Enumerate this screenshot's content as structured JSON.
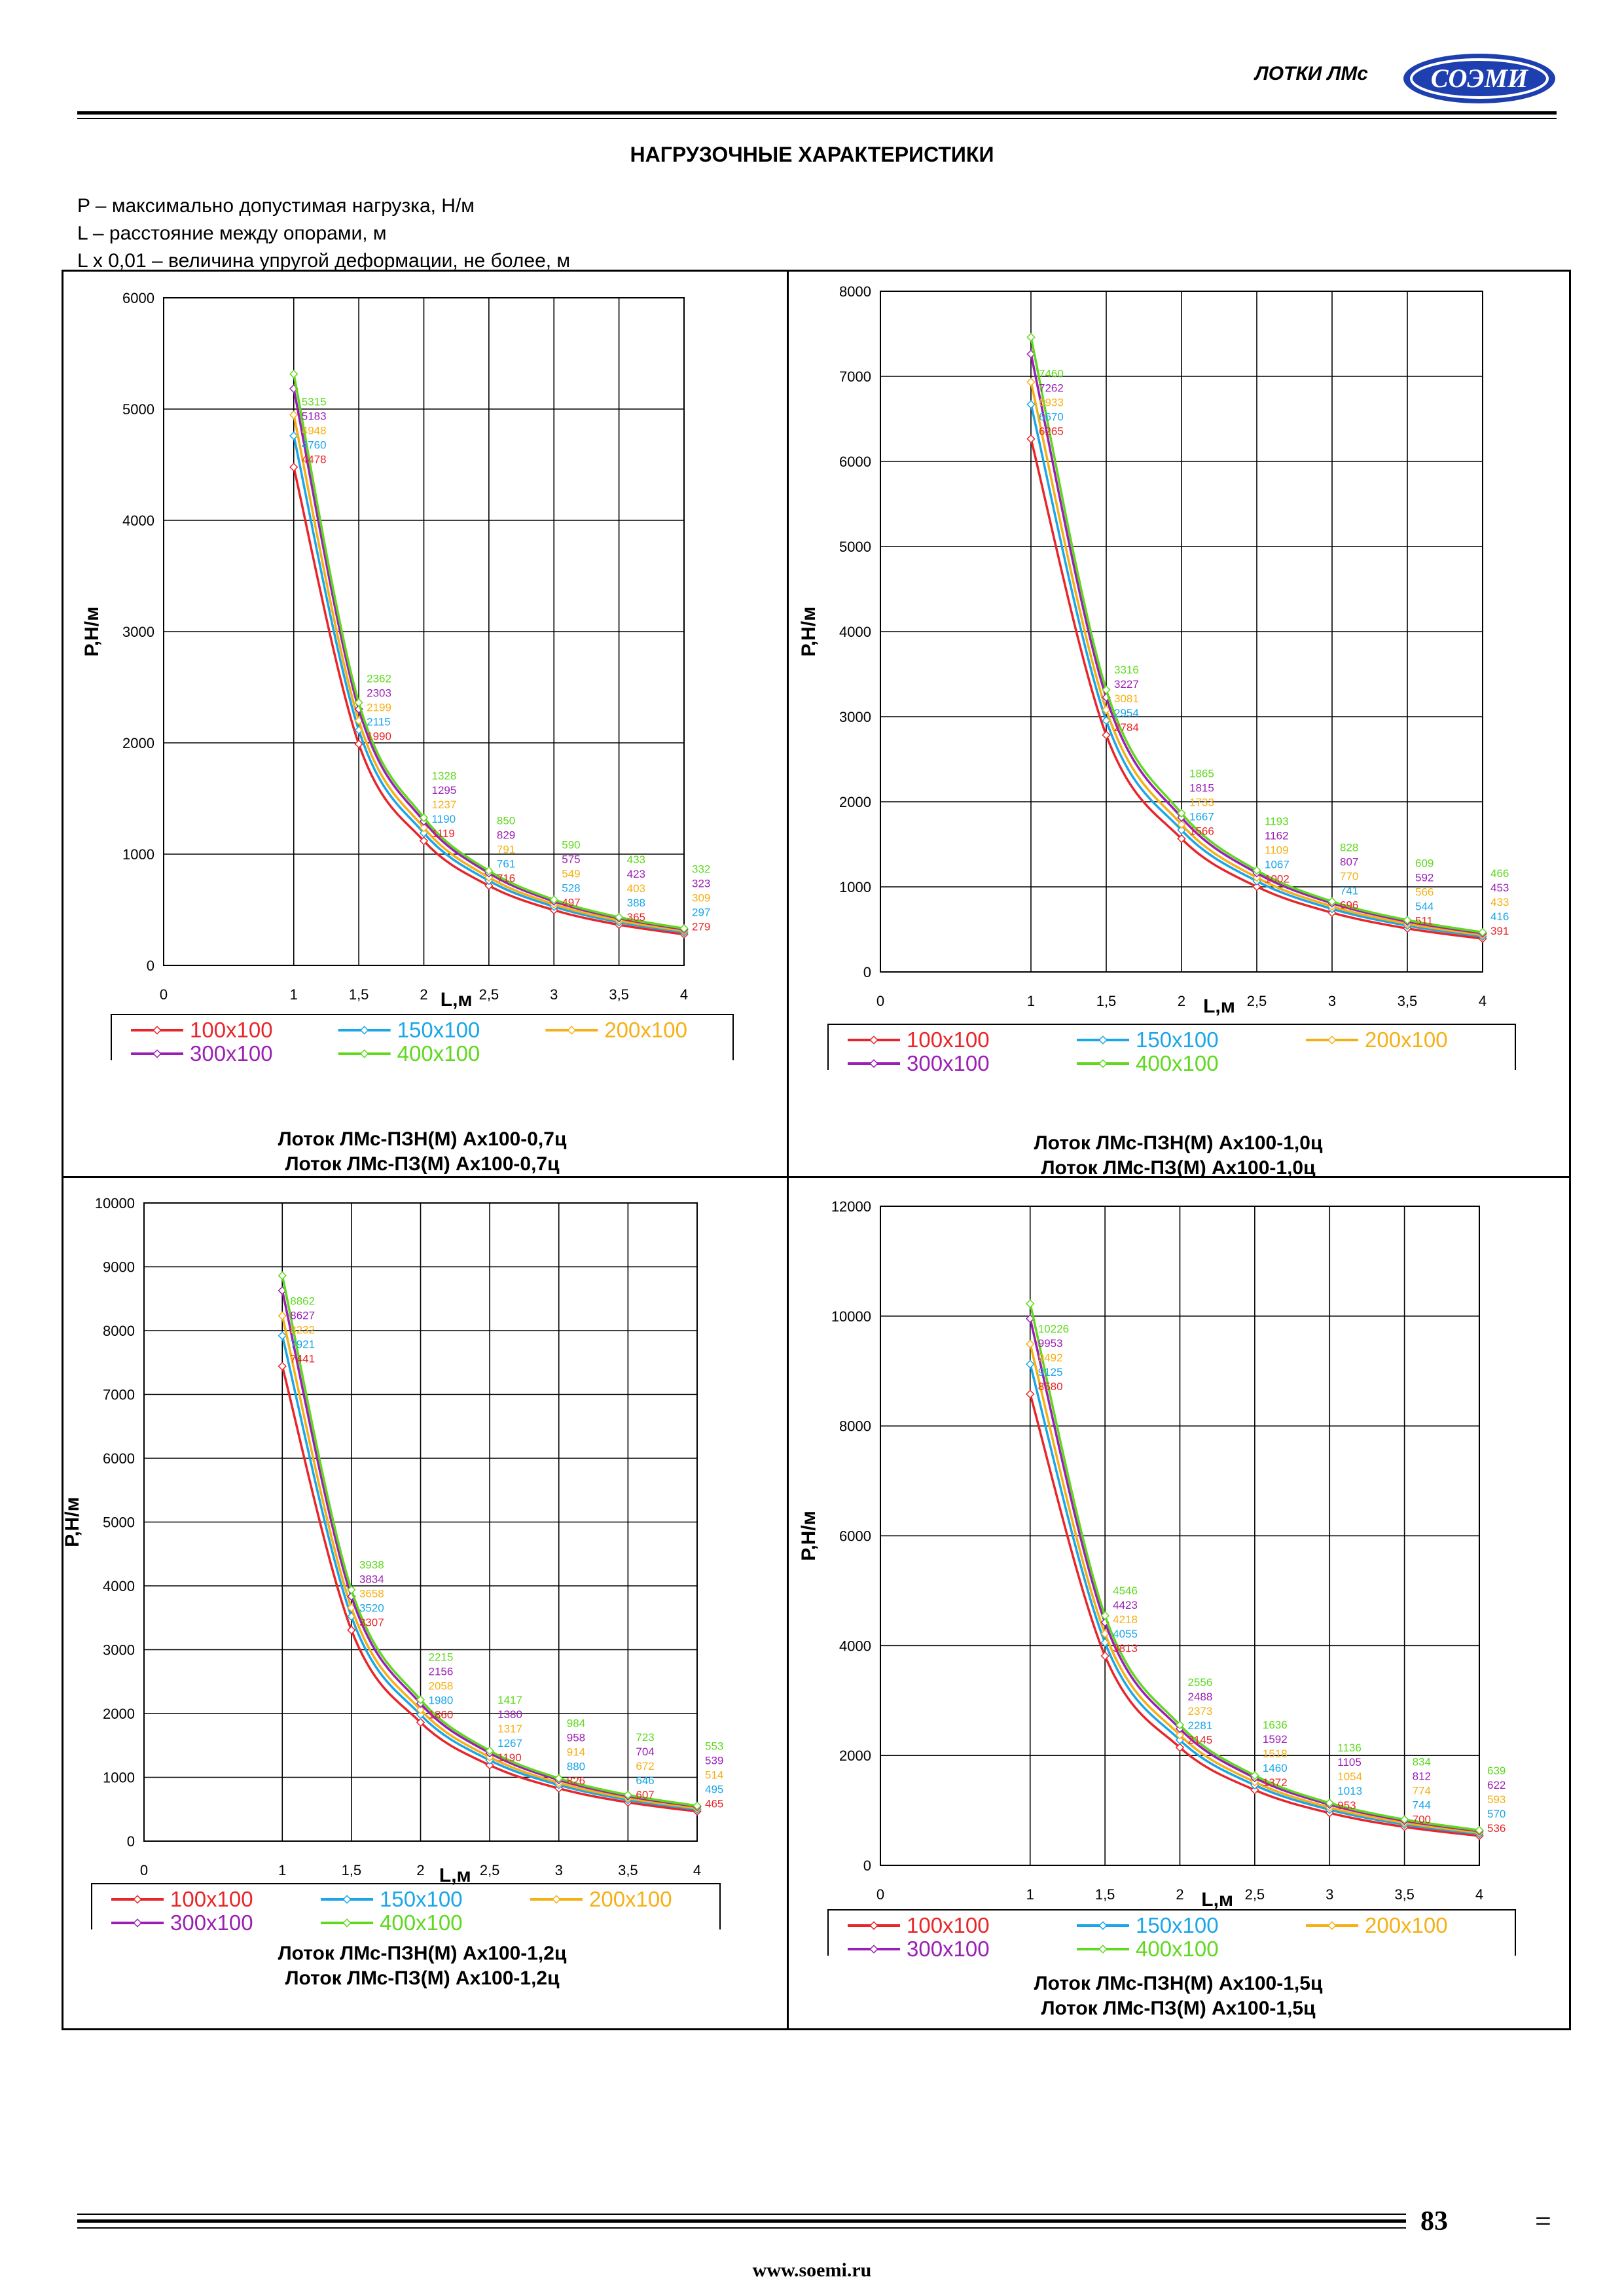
{
  "header": {
    "section": "ЛОТКИ ЛМс",
    "logo": "СОЭМИ"
  },
  "title": "НАГРУЗОЧНЫЕ ХАРАКТЕРИСТИКИ",
  "legend_lines": [
    "P – максимально допустимая нагрузка, Н/м",
    "L – расстояние между опорами, м",
    "L x 0,01 – величина упругой деформации, не более, м"
  ],
  "series_colors": {
    "100x100": "#e8262a",
    "150x100": "#1aa6e8",
    "200x100": "#f5b015",
    "300x100": "#9b1fb5",
    "400x100": "#5fd81e"
  },
  "chart_data": [
    {
      "type": "line",
      "xlabel": "L,м",
      "ylabel": "P,Н/м",
      "x": [
        1,
        1.5,
        2,
        2.5,
        3,
        3.5,
        4
      ],
      "xticks": [
        "0",
        "1",
        "1,5",
        "2",
        "2,5",
        "3",
        "3,5",
        "4"
      ],
      "xlim": [
        0,
        4
      ],
      "ylim": [
        0,
        6000
      ],
      "yticks": [
        "0",
        "1000",
        "2000",
        "3000",
        "4000",
        "5000",
        "6000"
      ],
      "series": [
        {
          "name": "100x100",
          "values": [
            4478,
            1990,
            1119,
            716,
            497,
            365,
            279
          ]
        },
        {
          "name": "150x100",
          "values": [
            4760,
            2115,
            1190,
            761,
            528,
            388,
            297
          ]
        },
        {
          "name": "200x100",
          "values": [
            4948,
            2199,
            1237,
            791,
            549,
            403,
            309
          ]
        },
        {
          "name": "300x100",
          "values": [
            5183,
            2303,
            1295,
            829,
            575,
            423,
            323
          ]
        },
        {
          "name": "400x100",
          "values": [
            5315,
            2362,
            1328,
            850,
            590,
            433,
            332
          ]
        }
      ],
      "caption": [
        "Лоток ЛМс-ПЗН(М) Ах100-0,7ц",
        "Лоток ЛМс-ПЗ(М) Ах100-0,7ц"
      ]
    },
    {
      "type": "line",
      "xlabel": "L,м",
      "ylabel": "P,Н/м",
      "x": [
        1,
        1.5,
        2,
        2.5,
        3,
        3.5,
        4
      ],
      "xticks": [
        "0",
        "1",
        "1,5",
        "2",
        "2,5",
        "3",
        "3,5",
        "4"
      ],
      "xlim": [
        0,
        4
      ],
      "ylim": [
        0,
        8000
      ],
      "yticks": [
        "0",
        "1000",
        "2000",
        "3000",
        "4000",
        "5000",
        "6000",
        "7000",
        "8000"
      ],
      "series": [
        {
          "name": "100x100",
          "values": [
            6265,
            2784,
            1566,
            1002,
            696,
            511,
            391
          ]
        },
        {
          "name": "150x100",
          "values": [
            6670,
            2954,
            1667,
            1067,
            741,
            544,
            416
          ]
        },
        {
          "name": "200x100",
          "values": [
            6933,
            3081,
            1733,
            1109,
            770,
            566,
            433
          ]
        },
        {
          "name": "300x100",
          "values": [
            7262,
            3227,
            1815,
            1162,
            807,
            592,
            453
          ]
        },
        {
          "name": "400x100",
          "values": [
            7460,
            3316,
            1865,
            1193,
            828,
            609,
            466
          ]
        }
      ],
      "caption": [
        "Лоток ЛМс-ПЗН(М) Ах100-1,0ц",
        "Лоток ЛМс-ПЗ(М) Ах100-1,0ц"
      ]
    },
    {
      "type": "line",
      "xlabel": "L,м",
      "ylabel": "P,Н/м",
      "x": [
        1,
        1.5,
        2,
        2.5,
        3,
        3.5,
        4
      ],
      "xticks": [
        "0",
        "1",
        "1,5",
        "2",
        "2,5",
        "3",
        "3,5",
        "4"
      ],
      "xlim": [
        0,
        4
      ],
      "ylim": [
        0,
        10000
      ],
      "yticks": [
        "0",
        "1000",
        "2000",
        "3000",
        "4000",
        "5000",
        "6000",
        "7000",
        "8000",
        "9000",
        "10000"
      ],
      "series": [
        {
          "name": "100x100",
          "values": [
            7441,
            3307,
            1860,
            1190,
            826,
            607,
            465
          ]
        },
        {
          "name": "150x100",
          "values": [
            7921,
            3520,
            1980,
            1267,
            880,
            646,
            495
          ]
        },
        {
          "name": "200x100",
          "values": [
            8232,
            3658,
            2058,
            1317,
            914,
            672,
            514
          ]
        },
        {
          "name": "300x100",
          "values": [
            8627,
            3834,
            2156,
            1380,
            958,
            704,
            539
          ]
        },
        {
          "name": "400x100",
          "values": [
            8862,
            3938,
            2215,
            1417,
            984,
            723,
            553
          ]
        }
      ],
      "caption": [
        "Лоток ЛМс-ПЗН(М) Ах100-1,2ц",
        "Лоток ЛМс-ПЗ(М) Ах100-1,2ц"
      ]
    },
    {
      "type": "line",
      "xlabel": "L,м",
      "ylabel": "P,Н/м",
      "x": [
        1,
        1.5,
        2,
        2.5,
        3,
        3.5,
        4
      ],
      "xticks": [
        "0",
        "1",
        "1,5",
        "2",
        "2,5",
        "3",
        "3,5",
        "4"
      ],
      "xlim": [
        0,
        4
      ],
      "ylim": [
        0,
        12000
      ],
      "yticks": [
        "0",
        "2000",
        "4000",
        "6000",
        "8000",
        "10000",
        "12000"
      ],
      "series": [
        {
          "name": "100x100",
          "values": [
            8580,
            3813,
            2145,
            1372,
            953,
            700,
            536
          ]
        },
        {
          "name": "150x100",
          "values": [
            9125,
            4055,
            2281,
            1460,
            1013,
            744,
            570
          ]
        },
        {
          "name": "200x100",
          "values": [
            9492,
            4218,
            2373,
            1518,
            1054,
            774,
            593
          ]
        },
        {
          "name": "300x100",
          "values": [
            9953,
            4423,
            2488,
            1592,
            1105,
            812,
            622
          ]
        },
        {
          "name": "400x100",
          "values": [
            10226,
            4546,
            2556,
            1636,
            1136,
            834,
            639
          ]
        }
      ],
      "caption": [
        "Лоток ЛМс-ПЗН(М) Ах100-1,5ц",
        "Лоток ЛМс-ПЗ(М) Ах100-1,5ц"
      ]
    }
  ],
  "footer": {
    "page": "83",
    "url": "www.soemi.ru"
  }
}
